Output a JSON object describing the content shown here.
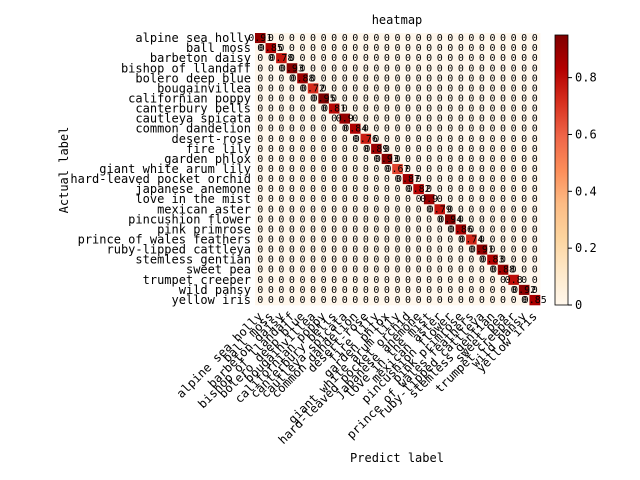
{
  "chart_data": {
    "type": "heatmap",
    "title": "heatmap",
    "xlabel": "Predict label",
    "ylabel": "Actual label",
    "cmap": "OrRd",
    "categories": [
      "alpine sea holly",
      "ball moss",
      "barbeton daisy",
      "bishop of llandaff",
      "bolero deep blue",
      "bougainvillea",
      "californian poppy",
      "canterbury bells",
      "cautleya spicata",
      "common dandelion",
      "desert-rose",
      "fire lily",
      "garden phlox",
      "giant white arum lily",
      "hard-leaved pocket orchid",
      "japanese anemone",
      "love in the mist",
      "mexican aster",
      "pincushion flower",
      "pink primrose",
      "prince of wales feathers",
      "ruby-lipped cattleya",
      "stemless gentian",
      "sweet pea",
      "trumpet creeper",
      "wild pansy",
      "yellow iris"
    ],
    "values": [
      [
        0.91,
        0,
        0,
        0,
        0,
        0,
        0,
        0,
        0,
        0,
        0,
        0,
        0,
        0,
        0,
        0,
        0,
        0,
        0,
        0,
        0,
        0,
        0,
        0,
        0,
        0,
        0
      ],
      [
        0,
        0.85,
        0,
        0,
        0,
        0,
        0,
        0,
        0,
        0,
        0,
        0,
        0,
        0,
        0,
        0,
        0,
        0,
        0,
        0,
        0,
        0,
        0,
        0,
        0,
        0,
        0
      ],
      [
        0,
        0,
        0.78,
        0,
        0,
        0,
        0,
        0,
        0,
        0,
        0,
        0,
        0,
        0,
        0,
        0,
        0,
        0,
        0,
        0,
        0,
        0,
        0,
        0,
        0,
        0,
        0
      ],
      [
        0,
        0,
        0,
        0.93,
        0,
        0,
        0,
        0,
        0,
        0,
        0,
        0,
        0,
        0,
        0,
        0,
        0,
        0,
        0,
        0,
        0,
        0,
        0,
        0,
        0,
        0,
        0
      ],
      [
        0,
        0,
        0,
        0,
        0.88,
        0,
        0,
        0,
        0,
        0,
        0,
        0,
        0,
        0,
        0,
        0,
        0,
        0,
        0,
        0,
        0,
        0,
        0,
        0,
        0,
        0,
        0
      ],
      [
        0,
        0,
        0,
        0,
        0,
        0.72,
        0,
        0,
        0,
        0,
        0,
        0,
        0,
        0,
        0,
        0,
        0,
        0,
        0,
        0,
        0,
        0,
        0,
        0,
        0,
        0,
        0
      ],
      [
        0,
        0,
        0,
        0,
        0,
        0,
        0.95,
        0,
        0,
        0,
        0,
        0,
        0,
        0,
        0,
        0,
        0,
        0,
        0,
        0,
        0,
        0,
        0,
        0,
        0,
        0,
        0
      ],
      [
        0,
        0,
        0,
        0,
        0,
        0,
        0,
        0.81,
        0,
        0,
        0,
        0,
        0,
        0,
        0,
        0,
        0,
        0,
        0,
        0,
        0,
        0,
        0,
        0,
        0,
        0,
        0
      ],
      [
        0,
        0,
        0,
        0,
        0,
        0,
        0,
        0,
        0.9,
        0,
        0,
        0,
        0,
        0,
        0,
        0,
        0,
        0,
        0,
        0,
        0,
        0,
        0,
        0,
        0,
        0,
        0
      ],
      [
        0,
        0,
        0,
        0,
        0,
        0,
        0,
        0,
        0,
        0.84,
        0,
        0,
        0,
        0,
        0,
        0,
        0,
        0,
        0,
        0,
        0,
        0,
        0,
        0,
        0,
        0,
        0
      ],
      [
        0,
        0,
        0,
        0,
        0,
        0,
        0,
        0,
        0,
        0,
        0.76,
        0,
        0,
        0,
        0,
        0,
        0,
        0,
        0,
        0,
        0,
        0,
        0,
        0,
        0,
        0,
        0
      ],
      [
        0,
        0,
        0,
        0,
        0,
        0,
        0,
        0,
        0,
        0,
        0,
        0.89,
        0,
        0,
        0,
        0,
        0,
        0,
        0,
        0,
        0,
        0,
        0,
        0,
        0,
        0,
        0
      ],
      [
        0,
        0,
        0,
        0,
        0,
        0,
        0,
        0,
        0,
        0,
        0,
        0,
        0.93,
        0,
        0,
        0,
        0,
        0,
        0,
        0,
        0,
        0,
        0,
        0,
        0,
        0,
        0
      ],
      [
        0,
        0,
        0,
        0,
        0,
        0,
        0,
        0,
        0,
        0,
        0,
        0,
        0,
        0.67,
        0,
        0,
        0,
        0,
        0,
        0,
        0,
        0,
        0,
        0,
        0,
        0,
        0
      ],
      [
        0,
        0,
        0,
        0,
        0,
        0,
        0,
        0,
        0,
        0,
        0,
        0,
        0,
        0,
        0.87,
        0,
        0,
        0,
        0,
        0,
        0,
        0,
        0,
        0,
        0,
        0,
        0
      ],
      [
        0,
        0,
        0,
        0,
        0,
        0,
        0,
        0,
        0,
        0,
        0,
        0,
        0,
        0,
        0,
        0.82,
        0,
        0,
        0,
        0,
        0,
        0,
        0,
        0,
        0,
        0,
        0
      ],
      [
        0,
        0,
        0,
        0,
        0,
        0,
        0,
        0,
        0,
        0,
        0,
        0,
        0,
        0,
        0,
        0,
        0.9,
        0,
        0,
        0,
        0,
        0,
        0,
        0,
        0,
        0,
        0
      ],
      [
        0,
        0,
        0,
        0,
        0,
        0,
        0,
        0,
        0,
        0,
        0,
        0,
        0,
        0,
        0,
        0,
        0,
        0.79,
        0,
        0,
        0,
        0,
        0,
        0,
        0,
        0,
        0
      ],
      [
        0,
        0,
        0,
        0,
        0,
        0,
        0,
        0,
        0,
        0,
        0,
        0,
        0,
        0,
        0,
        0,
        0,
        0,
        0.94,
        0,
        0,
        0,
        0,
        0,
        0,
        0,
        0
      ],
      [
        0,
        0,
        0,
        0,
        0,
        0,
        0,
        0,
        0,
        0,
        0,
        0,
        0,
        0,
        0,
        0,
        0,
        0,
        0,
        0.86,
        0,
        0,
        0,
        0,
        0,
        0,
        0
      ],
      [
        0,
        0,
        0,
        0,
        0,
        0,
        0,
        0,
        0,
        0,
        0,
        0,
        0,
        0,
        0,
        0,
        0,
        0,
        0,
        0,
        0.74,
        0,
        0,
        0,
        0,
        0,
        0
      ],
      [
        0,
        0,
        0,
        0,
        0,
        0,
        0,
        0,
        0,
        0,
        0,
        0,
        0,
        0,
        0,
        0,
        0,
        0,
        0,
        0,
        0,
        0.91,
        0,
        0,
        0,
        0,
        0
      ],
      [
        0,
        0,
        0,
        0,
        0,
        0,
        0,
        0,
        0,
        0,
        0,
        0,
        0,
        0,
        0,
        0,
        0,
        0,
        0,
        0,
        0,
        0,
        0.83,
        0,
        0,
        0,
        0
      ],
      [
        0,
        0,
        0,
        0,
        0,
        0,
        0,
        0,
        0,
        0,
        0,
        0,
        0,
        0,
        0,
        0,
        0,
        0,
        0,
        0,
        0,
        0,
        0,
        0.88,
        0,
        0,
        0
      ],
      [
        0,
        0,
        0,
        0,
        0,
        0,
        0,
        0,
        0,
        0,
        0,
        0,
        0,
        0,
        0,
        0,
        0,
        0,
        0,
        0,
        0,
        0,
        0,
        0,
        0.8,
        0,
        0
      ],
      [
        0,
        0,
        0,
        0,
        0,
        0,
        0,
        0,
        0,
        0,
        0,
        0,
        0,
        0,
        0,
        0,
        0,
        0,
        0,
        0,
        0,
        0,
        0,
        0,
        0,
        0.92,
        0
      ],
      [
        0,
        0,
        0,
        0,
        0,
        0,
        0,
        0,
        0,
        0,
        0,
        0,
        0,
        0,
        0,
        0,
        0,
        0,
        0,
        0,
        0,
        0,
        0,
        0,
        0,
        0,
        0.85
      ]
    ],
    "clim": [
      0,
      0.95
    ],
    "cticks": [
      0,
      {
        "value": 0.2,
        "label": "0.2"
      },
      {
        "value": 0.4,
        "label": "0.4"
      },
      {
        "value": 0.6,
        "label": "0.6"
      },
      {
        "value": 0.8,
        "label": "0.8"
      }
    ]
  }
}
